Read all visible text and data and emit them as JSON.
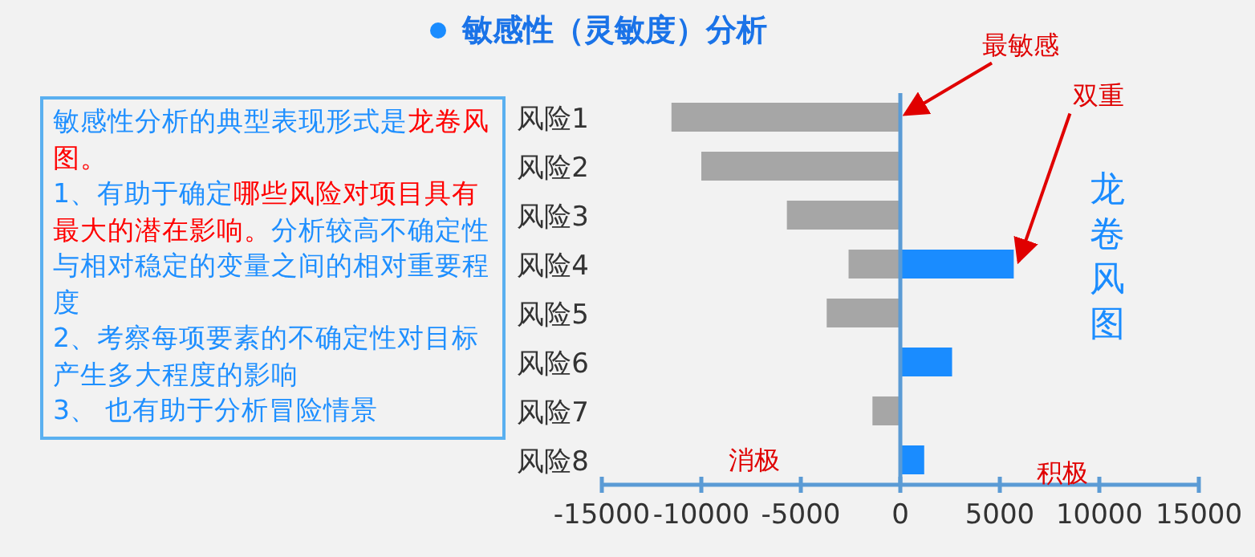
{
  "chart_data": [
    {
      "type": "other",
      "annotations": [
        "敏感性分析的典型表现形式是",
        "龙卷风图。",
        "1、有助于确定",
        "哪些风险对项目具有最大的潜在影响。",
        "分析较高不确定性与相对稳定的变量之间的相对重要程度",
        "2、考察每项要素的不确定性对目标产生多大程度的影响",
        "3、 也有助于分析冒险情景"
      ],
      "colors": [
        "#1e8fff",
        "#ff0000",
        "#1e8fff",
        "#ff0000",
        "#1e8fff",
        "#1e8fff",
        "#1e8fff"
      ]
    },
    {
      "type": "bar",
      "orientation": "horizontal",
      "stacked": true,
      "title": "敏感性（灵敏度）分析",
      "categories": [
        "风险1",
        "风险2",
        "风险3",
        "风险4",
        "风险5",
        "风险6",
        "风险7",
        "风险8"
      ],
      "series": [
        {
          "color": "#a6a6a6",
          "values": [
            -11500,
            -10000,
            -5700,
            -2600,
            -3700,
            null,
            -1400,
            null
          ]
        },
        {
          "color": "#1a8cff",
          "values": [
            null,
            null,
            null,
            5700,
            null,
            2600,
            null,
            1200
          ]
        }
      ],
      "xlim": [
        -15000,
        15000
      ],
      "xticks": [
        -15000,
        -10000,
        -5000,
        0,
        5000,
        10000,
        15000
      ],
      "ref_lines": [
        {
          "axis": "x",
          "value": 0,
          "color": "#5b9bd5"
        }
      ],
      "annotations": [
        {
          "text": "最敏感",
          "x": 0,
          "y": "风险1"
        },
        {
          "text": "双重",
          "x": 5700,
          "y": "风险4"
        },
        "龙卷风图",
        "消极",
        "积极"
      ],
      "line_style": "solid"
    }
  ]
}
